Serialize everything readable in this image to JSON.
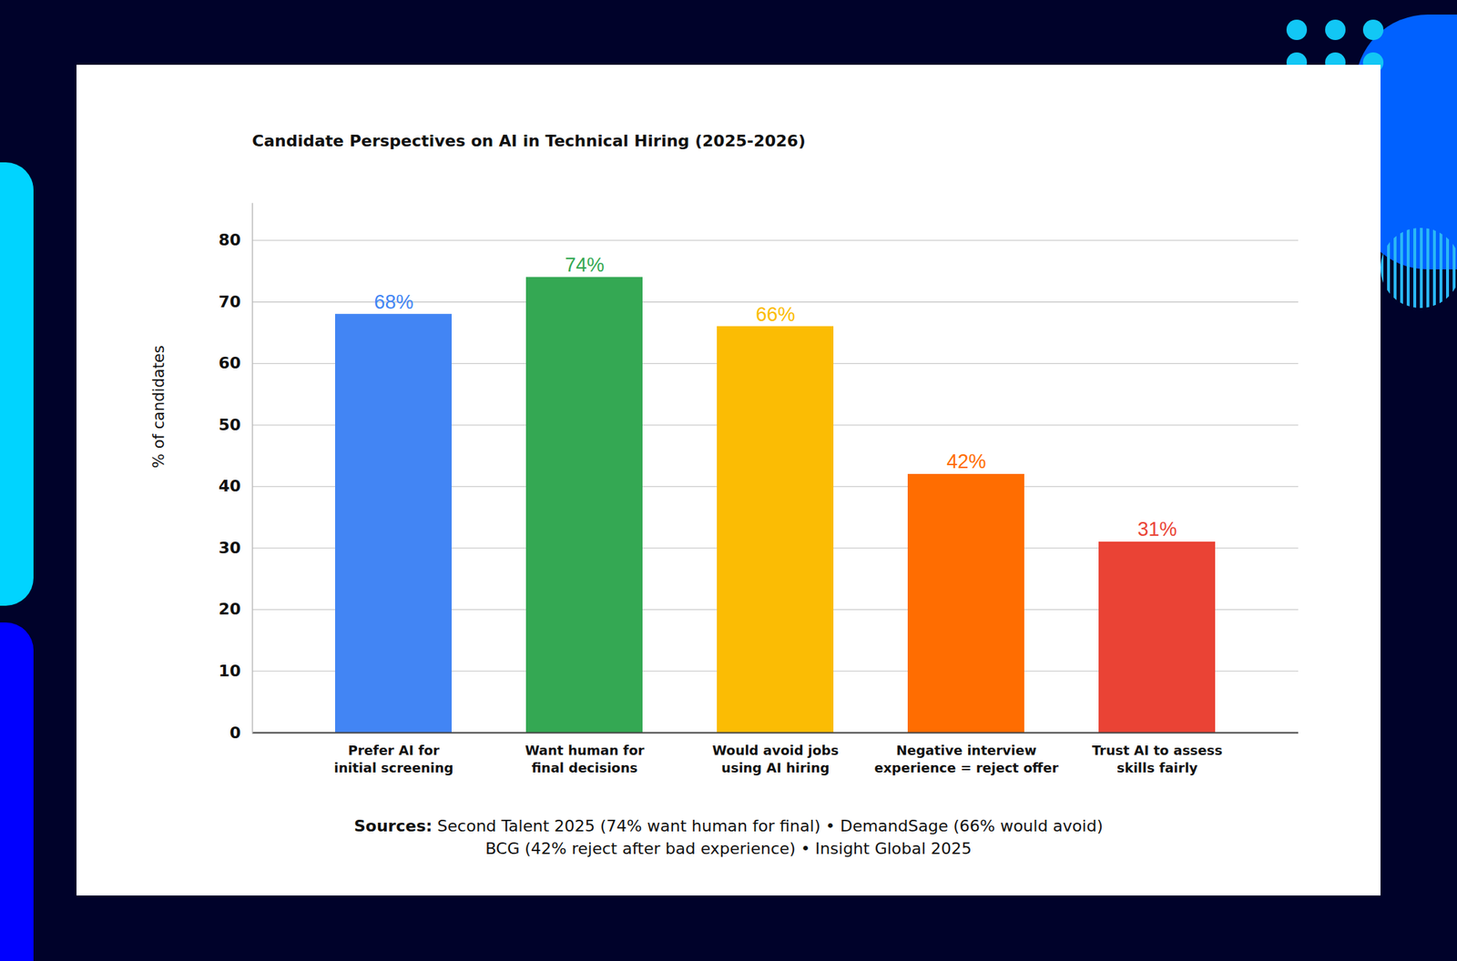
{
  "chart_data": {
    "type": "bar",
    "title": "Candidate Perspectives on AI in Technical Hiring (2025-2026)",
    "ylabel": "% of candidates",
    "categories": [
      "Prefer AI for initial screening",
      "Want human for final decisions",
      "Would avoid jobs using AI hiring",
      "Negative interview experience = reject offer",
      "Trust AI to assess skills fairly"
    ],
    "values": [
      68,
      74,
      66,
      42,
      31
    ],
    "value_labels": [
      "68%",
      "74%",
      "66%",
      "42%",
      "31%"
    ],
    "colors": [
      "#4285f4",
      "#34a853",
      "#fbbc04",
      "#ff6d01",
      "#ea4335"
    ],
    "ylim": [
      0,
      86
    ],
    "yticks": [
      0,
      10,
      20,
      30,
      40,
      50,
      60,
      70,
      80
    ],
    "grid": true,
    "data_labels": true,
    "source_label": "Sources:",
    "source": [
      "Second Talent 2025 (74% want human for final) • DemandSage (66% would avoid)",
      "BCG (42% reject after bad experience) • Insight Global 2025"
    ]
  }
}
